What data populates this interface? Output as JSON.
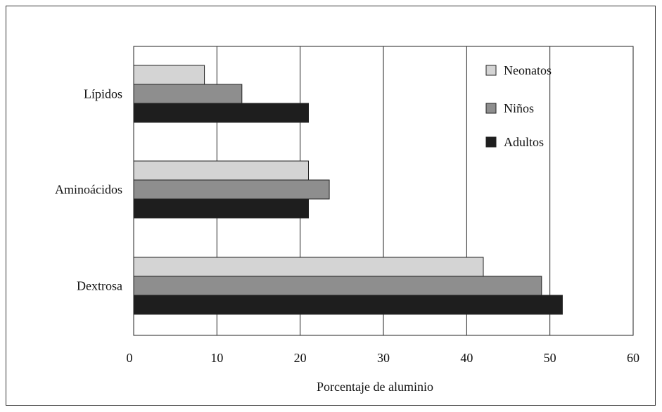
{
  "chart_data": {
    "type": "bar",
    "orientation": "horizontal",
    "categories": [
      "Lípidos",
      "Aminoácidos",
      "Dextrosa"
    ],
    "series": [
      {
        "name": "Neonatos",
        "color": "#d4d4d4",
        "values": [
          8.5,
          21,
          42
        ]
      },
      {
        "name": "Niños",
        "color": "#8e8e8e",
        "values": [
          13,
          23.5,
          49
        ]
      },
      {
        "name": "Adultos",
        "color": "#1e1e1e",
        "values": [
          21,
          21,
          51.5
        ]
      }
    ],
    "xlabel": "Porcentaje de aluminio",
    "xlim": [
      0,
      60
    ],
    "xticks": [
      "0",
      "10",
      "20",
      "30",
      "40",
      "50",
      "60"
    ],
    "grid": "vertical",
    "legend_position": "top-right"
  }
}
